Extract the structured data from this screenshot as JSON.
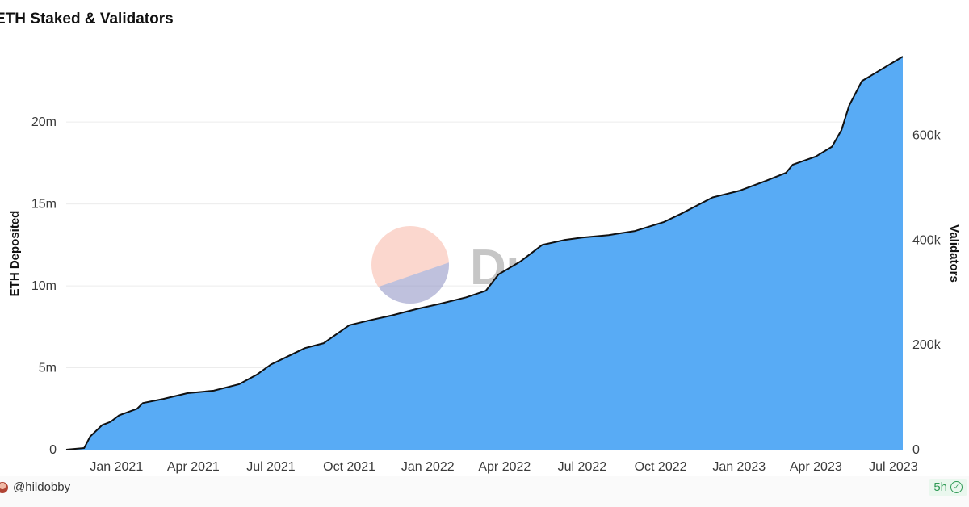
{
  "chart_data": {
    "type": "area",
    "title": "ETH Staked & Validators",
    "ylabel": "ETH Deposited",
    "y2label": "Validators",
    "ylim": [
      0,
      24000000
    ],
    "y2lim": [
      0,
      750000
    ],
    "yticks": [
      {
        "value": 0,
        "label": "0"
      },
      {
        "value": 5000000,
        "label": "5m"
      },
      {
        "value": 10000000,
        "label": "10m"
      },
      {
        "value": 15000000,
        "label": "15m"
      },
      {
        "value": 20000000,
        "label": "20m"
      }
    ],
    "y2ticks": [
      {
        "value": 0,
        "label": "0"
      },
      {
        "value": 200000,
        "label": "200k"
      },
      {
        "value": 400000,
        "label": "400k"
      },
      {
        "value": 600000,
        "label": "600k"
      }
    ],
    "xlim": [
      "2020-11-03",
      "2023-07-12"
    ],
    "xticks": [
      {
        "date": "2021-01-01",
        "label": "Jan 2021"
      },
      {
        "date": "2021-04-01",
        "label": "Apr 2021"
      },
      {
        "date": "2021-07-01",
        "label": "Jul 2021"
      },
      {
        "date": "2021-10-01",
        "label": "Oct 2021"
      },
      {
        "date": "2022-01-01",
        "label": "Jan 2022"
      },
      {
        "date": "2022-04-01",
        "label": "Apr 2022"
      },
      {
        "date": "2022-07-01",
        "label": "Jul 2022"
      },
      {
        "date": "2022-10-01",
        "label": "Oct 2022"
      },
      {
        "date": "2023-01-01",
        "label": "Jan 2023"
      },
      {
        "date": "2023-04-01",
        "label": "Apr 2023"
      },
      {
        "date": "2023-07-01",
        "label": "Jul 2023"
      }
    ],
    "grid": true,
    "fill_color": "#58abf5",
    "line_color": "#111111",
    "series": [
      {
        "points": [
          [
            "2020-11-03",
            0
          ],
          [
            "2020-11-24",
            100000
          ],
          [
            "2020-12-01",
            800000
          ],
          [
            "2020-12-15",
            1500000
          ],
          [
            "2020-12-25",
            1700000
          ],
          [
            "2021-01-04",
            2100000
          ],
          [
            "2021-01-25",
            2500000
          ],
          [
            "2021-02-01",
            2850000
          ],
          [
            "2021-02-25",
            3100000
          ],
          [
            "2021-03-25",
            3450000
          ],
          [
            "2021-04-25",
            3600000
          ],
          [
            "2021-05-25",
            4000000
          ],
          [
            "2021-06-15",
            4600000
          ],
          [
            "2021-07-01",
            5200000
          ],
          [
            "2021-07-25",
            5800000
          ],
          [
            "2021-08-10",
            6200000
          ],
          [
            "2021-09-01",
            6500000
          ],
          [
            "2021-09-20",
            7200000
          ],
          [
            "2021-10-01",
            7600000
          ],
          [
            "2021-10-25",
            7900000
          ],
          [
            "2021-11-20",
            8200000
          ],
          [
            "2021-12-20",
            8600000
          ],
          [
            "2022-01-15",
            8900000
          ],
          [
            "2022-02-15",
            9300000
          ],
          [
            "2022-03-10",
            9700000
          ],
          [
            "2022-03-25",
            10700000
          ],
          [
            "2022-04-20",
            11500000
          ],
          [
            "2022-05-15",
            12500000
          ],
          [
            "2022-06-10",
            12800000
          ],
          [
            "2022-07-01",
            12950000
          ],
          [
            "2022-08-01",
            13100000
          ],
          [
            "2022-09-01",
            13350000
          ],
          [
            "2022-10-05",
            13900000
          ],
          [
            "2022-10-25",
            14400000
          ],
          [
            "2022-12-01",
            15400000
          ],
          [
            "2023-01-01",
            15800000
          ],
          [
            "2023-02-01",
            16400000
          ],
          [
            "2023-02-25",
            16900000
          ],
          [
            "2023-03-05",
            17400000
          ],
          [
            "2023-04-01",
            17900000
          ],
          [
            "2023-04-20",
            18500000
          ],
          [
            "2023-05-01",
            19500000
          ],
          [
            "2023-05-10",
            21000000
          ],
          [
            "2023-05-25",
            22500000
          ],
          [
            "2023-06-10",
            23000000
          ],
          [
            "2023-07-12",
            24000000
          ]
        ]
      }
    ]
  },
  "watermark": {
    "text": "Dune"
  },
  "footer": {
    "author": "@hildobby",
    "freshness": "5h",
    "freshness_color": "#2f9a55",
    "avatar_icon": "avatar-icon",
    "check_icon": "check-circle-icon"
  }
}
